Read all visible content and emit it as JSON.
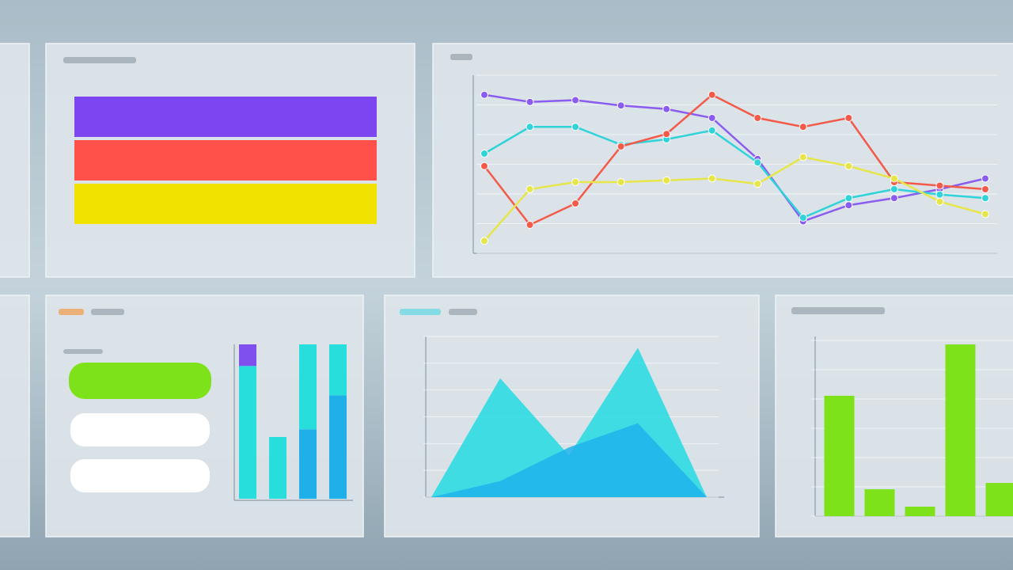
{
  "chart_data": [
    {
      "type": "bar",
      "orientation": "horizontal",
      "categories": [
        null,
        null,
        null
      ],
      "values": [
        10,
        10,
        10
      ],
      "colors": [
        "#7b45f0",
        "#ff5149",
        "#f2e200"
      ],
      "xlim": [
        0,
        10
      ]
    },
    {
      "type": "line",
      "categories": [
        null,
        null,
        null,
        null,
        null,
        null,
        null,
        null,
        null,
        null,
        null,
        null
      ],
      "ylim": [
        0,
        10
      ],
      "grid": true,
      "series": [
        {
          "color": "#8a5cf0",
          "values": [
            8.9,
            8.5,
            8.6,
            8.3,
            8.1,
            7.6,
            5.3,
            1.8,
            2.7,
            3.1,
            3.6,
            4.2
          ]
        },
        {
          "color": "#2fd3d8",
          "values": [
            5.6,
            7.1,
            7.1,
            6.1,
            6.4,
            6.9,
            5.1,
            2.0,
            3.1,
            3.6,
            3.3,
            3.1
          ]
        },
        {
          "color": "#f45a4a",
          "values": [
            4.9,
            1.6,
            2.8,
            6.0,
            6.7,
            8.9,
            7.6,
            7.1,
            7.6,
            4.0,
            3.8,
            3.6
          ]
        },
        {
          "color": "#e6e64a",
          "values": [
            0.7,
            3.6,
            4.0,
            4.0,
            4.1,
            4.2,
            3.9,
            5.4,
            4.9,
            4.2,
            2.9,
            2.2
          ]
        }
      ]
    },
    {
      "type": "bar",
      "stacked": true,
      "categories": [
        null,
        null,
        null,
        null
      ],
      "ylim": [
        0,
        100
      ],
      "series": [
        {
          "color": "#1fb0ea",
          "values": [
            0,
            0,
            45,
            67
          ]
        },
        {
          "color": "#27dedd",
          "values": [
            86,
            40,
            55,
            33
          ]
        },
        {
          "color": "#8050ee",
          "values": [
            14,
            0,
            0,
            0
          ]
        }
      ]
    },
    {
      "type": "area",
      "categories": [
        null,
        null,
        null,
        null,
        null
      ],
      "ylim": [
        0,
        10
      ],
      "grid": true,
      "series": [
        {
          "color": "#24dbe2",
          "values": [
            0,
            7.4,
            2.6,
            9.3,
            0
          ]
        },
        {
          "color": "#1fb3ec",
          "values": [
            0,
            1.0,
            3.1,
            4.6,
            0
          ]
        }
      ]
    },
    {
      "type": "bar",
      "categories": [
        null,
        null,
        null,
        null,
        null
      ],
      "values": [
        68.5,
        15.3,
        5.4,
        97.7,
        18.9
      ],
      "color": "#7ee21a",
      "ylim": [
        0,
        100
      ],
      "grid": true
    }
  ]
}
